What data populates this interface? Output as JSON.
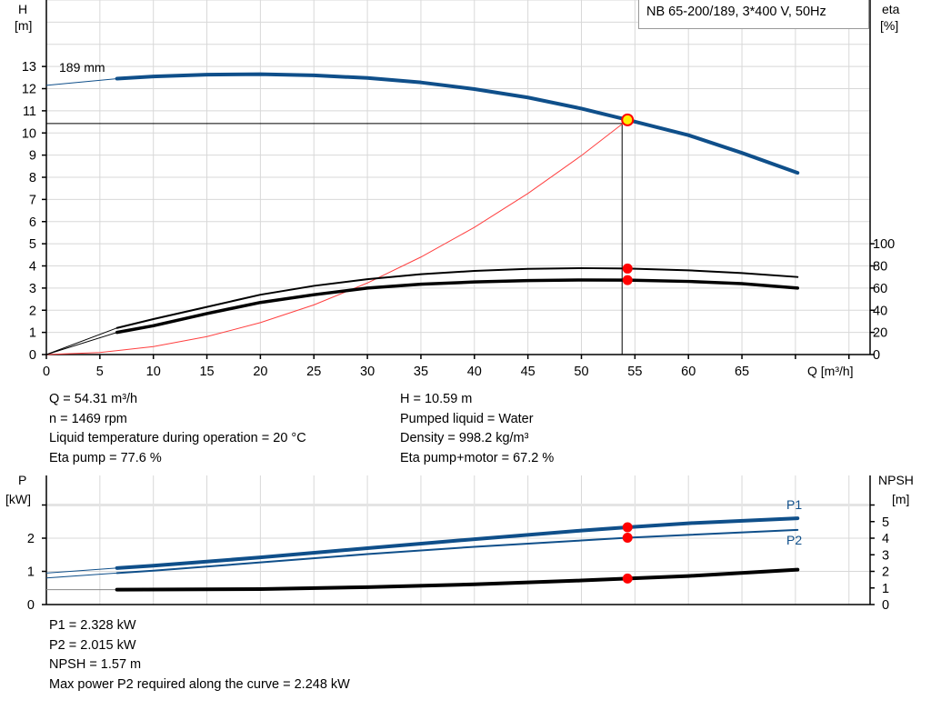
{
  "legend_title": "NB 65-200/189, 3*400 V, 50Hz",
  "chart_data": [
    {
      "type": "line",
      "name": "head-efficiency",
      "xlabel": "Q [m³/h]",
      "ylabel": [
        "H",
        "[m]"
      ],
      "y2label": [
        "eta",
        "[%]"
      ],
      "xlim": [
        0,
        77
      ],
      "ylim": [
        0,
        16
      ],
      "y2lim": [
        0,
        320
      ],
      "x_ticks": [
        0,
        5,
        10,
        15,
        20,
        25,
        30,
        35,
        40,
        45,
        50,
        55,
        60,
        65
      ],
      "y_ticks": [
        0,
        1,
        2,
        3,
        4,
        5,
        6,
        7,
        8,
        9,
        10,
        11,
        12,
        13
      ],
      "y2_ticks": [
        0,
        20,
        40,
        60,
        80,
        100
      ],
      "grid": true,
      "curve_label": "189 mm",
      "min_flow": 6.6,
      "series": [
        {
          "key": "H",
          "axis": "left",
          "color": "#0f4f8a",
          "x": [
            0,
            6.6,
            10,
            15,
            20,
            25,
            30,
            35,
            40,
            45,
            50,
            54.31,
            60,
            65,
            70.2
          ],
          "y": [
            12.15,
            12.45,
            12.55,
            12.63,
            12.65,
            12.6,
            12.48,
            12.28,
            11.98,
            11.6,
            11.1,
            10.59,
            9.9,
            9.1,
            8.2
          ]
        },
        {
          "key": "eta_pump",
          "axis": "right",
          "color": "#000000",
          "x": [
            0,
            6.6,
            10,
            15,
            20,
            25,
            30,
            35,
            40,
            45,
            50,
            54.31,
            60,
            65,
            70.2
          ],
          "y": [
            0,
            24,
            32,
            43,
            54,
            62,
            68,
            72.5,
            75.5,
            77.3,
            78,
            77.6,
            76,
            73.5,
            70
          ]
        },
        {
          "key": "eta_pump_motor",
          "axis": "right",
          "color": "#000000",
          "x": [
            0,
            6.6,
            10,
            15,
            20,
            25,
            30,
            35,
            40,
            45,
            50,
            54.31,
            60,
            65,
            70.2
          ],
          "y": [
            0,
            20,
            26,
            37,
            47,
            54,
            60,
            63.5,
            65.5,
            66.8,
            67.3,
            67.2,
            66,
            64,
            60
          ]
        },
        {
          "key": "system",
          "axis": "left",
          "color": "#ff4040",
          "x": [
            0,
            5,
            10,
            15,
            20,
            25,
            30,
            35,
            40,
            45,
            50,
            54.31
          ],
          "y": [
            0,
            0.09,
            0.36,
            0.81,
            1.44,
            2.24,
            3.23,
            4.4,
            5.74,
            7.27,
            8.98,
            10.59
          ]
        }
      ],
      "operating_point": {
        "Q": 54.31,
        "H": 10.59,
        "eta_pump": 77.6,
        "eta_pump_motor": 67.2
      }
    },
    {
      "type": "line",
      "name": "power-npsh",
      "ylabel": [
        "P",
        "[kW]"
      ],
      "y2label": [
        "NPSH",
        "[m]"
      ],
      "xlim": [
        0,
        77
      ],
      "ylim": [
        0,
        3.9
      ],
      "y2lim": [
        0,
        7.8
      ],
      "y_ticks": [
        0,
        1,
        2
      ],
      "y2_ticks": [
        0,
        1,
        2,
        3,
        4,
        5
      ],
      "grid": true,
      "min_flow": 6.6,
      "series": [
        {
          "key": "P1",
          "name": "P1",
          "axis": "left",
          "color": "#0f4f8a",
          "x": [
            0,
            6.6,
            10,
            20,
            30,
            40,
            50,
            54.31,
            60,
            70.2
          ],
          "y": [
            0.95,
            1.1,
            1.17,
            1.42,
            1.7,
            1.97,
            2.23,
            2.328,
            2.45,
            2.6
          ]
        },
        {
          "key": "P2",
          "name": "P2",
          "axis": "left",
          "color": "#0f4f8a",
          "x": [
            0,
            6.6,
            10,
            20,
            30,
            40,
            50,
            54.31,
            60,
            70.2
          ],
          "y": [
            0.8,
            0.95,
            1.02,
            1.27,
            1.52,
            1.74,
            1.93,
            2.015,
            2.1,
            2.25
          ]
        },
        {
          "key": "NPSH",
          "axis": "right",
          "color": "#000000",
          "x": [
            0,
            6.6,
            20,
            30,
            40,
            50,
            54.31,
            60,
            70.2
          ],
          "y": [
            0.9,
            0.9,
            0.93,
            1.05,
            1.22,
            1.45,
            1.57,
            1.72,
            2.1
          ]
        }
      ],
      "operating_point": {
        "Q": 54.31,
        "P1": 2.328,
        "P2": 2.015,
        "NPSH": 1.57
      }
    }
  ],
  "info_top": {
    "left": [
      "Q = 54.31 m³/h",
      "n = 1469 rpm",
      "Liquid temperature during operation = 20 °C",
      "Eta pump = 77.6 %"
    ],
    "right": [
      "H = 10.59 m",
      "Pumped liquid = Water",
      "Density = 998.2 kg/m³",
      "Eta pump+motor = 67.2 %"
    ]
  },
  "info_bottom": [
    "P1 = 2.328 kW",
    "P2 = 2.015 kW",
    "NPSH = 1.57 m",
    "Max power P2 required along the curve = 2.248 kW"
  ]
}
